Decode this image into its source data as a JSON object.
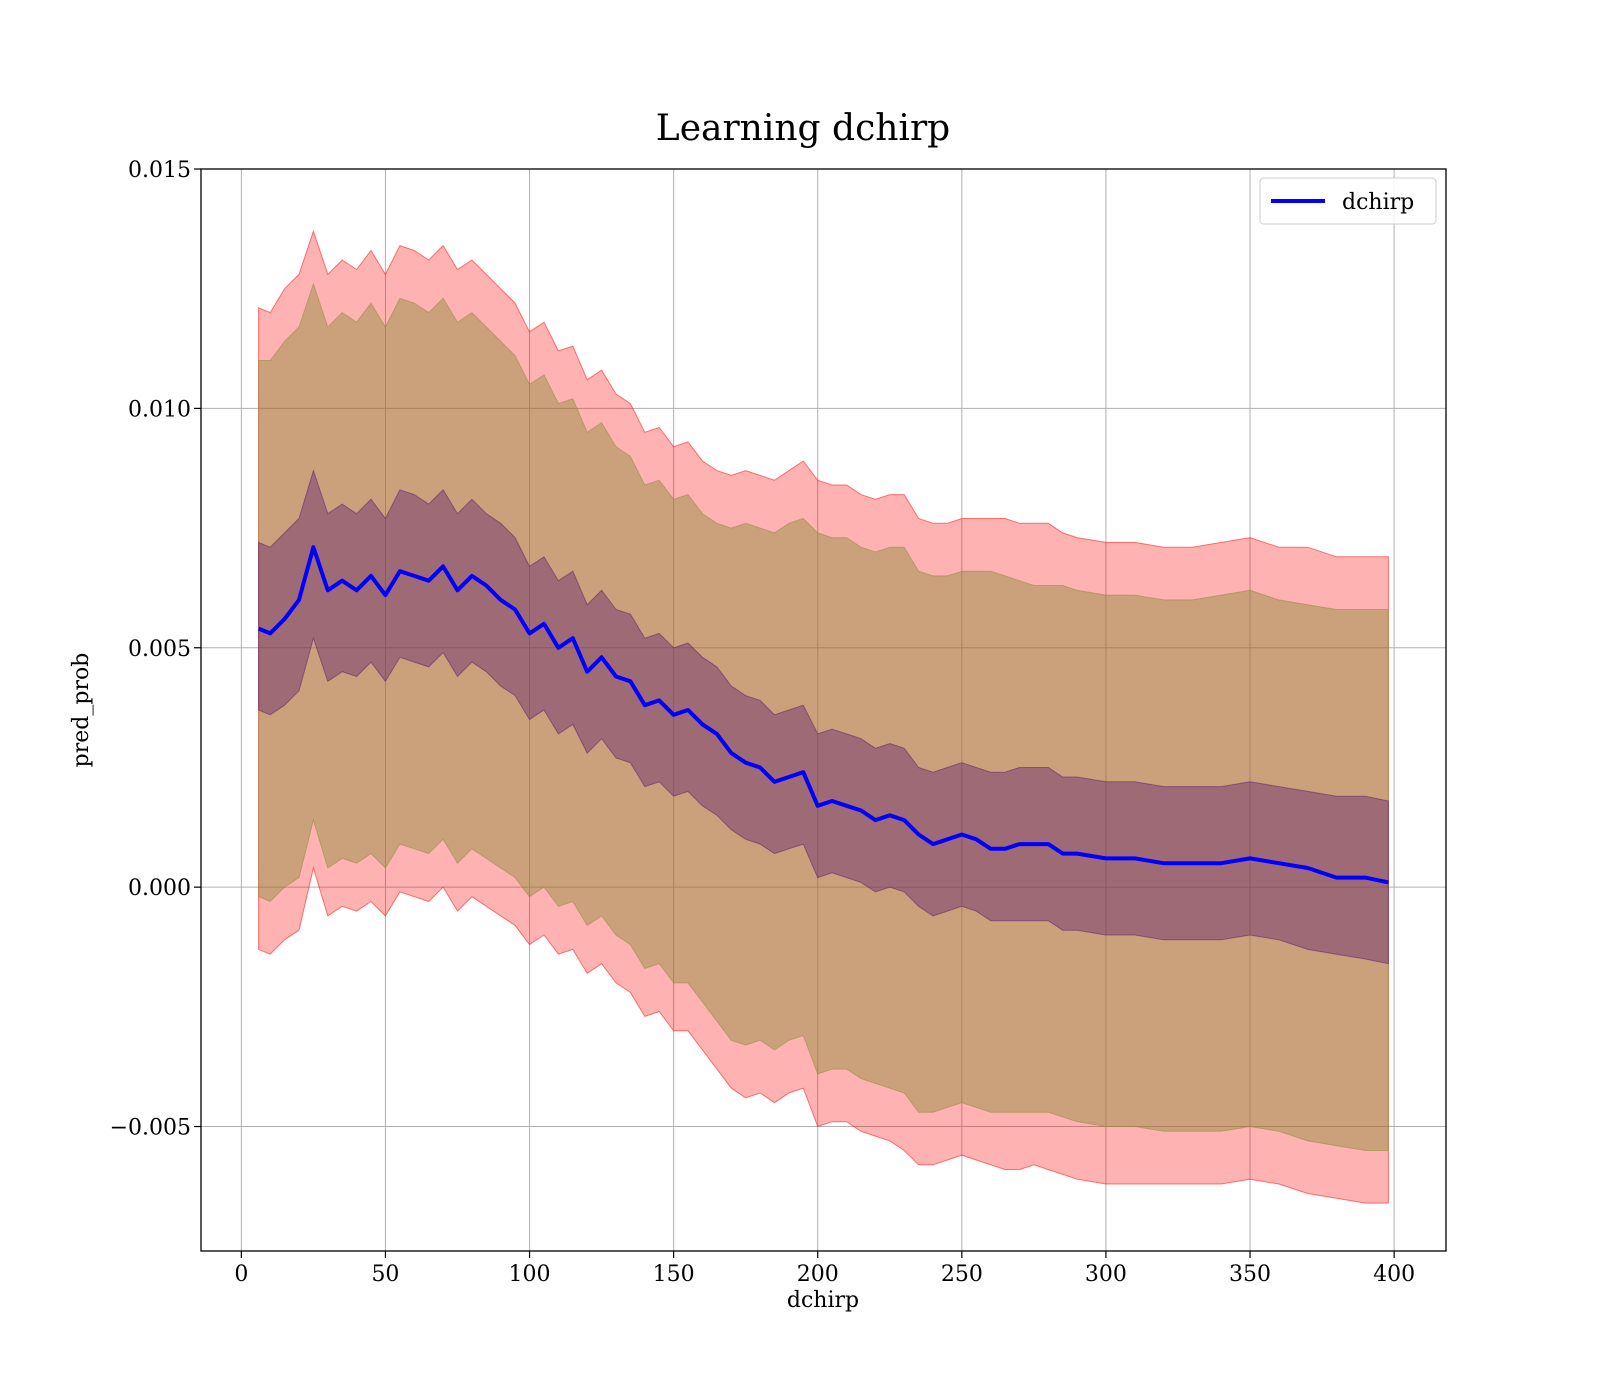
{
  "chart_data": {
    "type": "line",
    "title": "Learning dchirp",
    "xlabel": "dchirp",
    "ylabel": "pred_prob",
    "xlim": [
      -14,
      418
    ],
    "ylim": [
      -0.0076,
      0.015
    ],
    "grid": true,
    "legend_placement": "top-right",
    "xticks": [
      0,
      50,
      100,
      150,
      200,
      250,
      300,
      350,
      400
    ],
    "xtick_labels": [
      "0",
      "50",
      "100",
      "150",
      "200",
      "250",
      "300",
      "350",
      "400"
    ],
    "yticks": [
      -0.005,
      0.0,
      0.005,
      0.01,
      0.015
    ],
    "ytick_labels": [
      "−0.005",
      "0.000",
      "0.005",
      "0.010",
      "0.015"
    ],
    "series": [
      {
        "name": "dchirp",
        "color": "#0000ff",
        "x": [
          6,
          10,
          15,
          20,
          25,
          30,
          35,
          40,
          45,
          50,
          55,
          60,
          65,
          70,
          75,
          80,
          85,
          90,
          95,
          100,
          105,
          110,
          115,
          120,
          125,
          130,
          135,
          140,
          145,
          150,
          155,
          160,
          165,
          170,
          175,
          180,
          185,
          190,
          195,
          200,
          205,
          210,
          215,
          220,
          225,
          230,
          235,
          240,
          245,
          250,
          255,
          260,
          265,
          270,
          275,
          280,
          285,
          290,
          300,
          310,
          320,
          330,
          340,
          350,
          360,
          370,
          380,
          390,
          398
        ],
        "values": [
          0.0054,
          0.0053,
          0.0056,
          0.006,
          0.0071,
          0.0062,
          0.0064,
          0.0062,
          0.0065,
          0.0061,
          0.0066,
          0.0065,
          0.0064,
          0.0067,
          0.0062,
          0.0065,
          0.0063,
          0.006,
          0.0058,
          0.0053,
          0.0055,
          0.005,
          0.0052,
          0.0045,
          0.0048,
          0.0044,
          0.0043,
          0.0038,
          0.0039,
          0.0036,
          0.0037,
          0.0034,
          0.0032,
          0.0028,
          0.0026,
          0.0025,
          0.0022,
          0.0023,
          0.0024,
          0.0017,
          0.0018,
          0.0017,
          0.0016,
          0.0014,
          0.0015,
          0.0014,
          0.0011,
          0.0009,
          0.001,
          0.0011,
          0.001,
          0.0008,
          0.0008,
          0.0009,
          0.0009,
          0.0009,
          0.0007,
          0.0007,
          0.0006,
          0.0006,
          0.0005,
          0.0005,
          0.0005,
          0.0006,
          0.0005,
          0.0004,
          0.0002,
          0.0002,
          0.0001
        ]
      }
    ],
    "bands": [
      {
        "role": "outer",
        "color": "#ff0000",
        "opacity": 0.3,
        "upper": [
          0.0121,
          0.012,
          0.0125,
          0.0128,
          0.0137,
          0.0128,
          0.0131,
          0.0129,
          0.0133,
          0.0128,
          0.0134,
          0.0133,
          0.0131,
          0.0134,
          0.0129,
          0.0131,
          0.0128,
          0.0125,
          0.0122,
          0.0116,
          0.0118,
          0.0112,
          0.0113,
          0.0106,
          0.0108,
          0.0103,
          0.0101,
          0.0095,
          0.0096,
          0.0092,
          0.0093,
          0.0089,
          0.0087,
          0.0086,
          0.0087,
          0.0086,
          0.0085,
          0.0087,
          0.0089,
          0.0085,
          0.0084,
          0.0084,
          0.0082,
          0.0081,
          0.0082,
          0.0082,
          0.0077,
          0.0076,
          0.0076,
          0.0077,
          0.0077,
          0.0077,
          0.0077,
          0.0076,
          0.0076,
          0.0076,
          0.0074,
          0.0073,
          0.0072,
          0.0072,
          0.0071,
          0.0071,
          0.0072,
          0.0073,
          0.0071,
          0.0071,
          0.0069,
          0.0069,
          0.0069
        ],
        "lower": [
          -0.0013,
          -0.0014,
          -0.0011,
          -0.0009,
          0.0004,
          -0.0006,
          -0.0004,
          -0.0005,
          -0.0003,
          -0.0006,
          -0.0001,
          -0.0002,
          -0.0003,
          0.0,
          -0.0005,
          -0.0002,
          -0.0004,
          -0.0006,
          -0.0008,
          -0.0012,
          -0.001,
          -0.0014,
          -0.0013,
          -0.0018,
          -0.0016,
          -0.002,
          -0.0022,
          -0.0027,
          -0.0026,
          -0.003,
          -0.003,
          -0.0034,
          -0.0038,
          -0.0042,
          -0.0044,
          -0.0043,
          -0.0045,
          -0.0043,
          -0.0042,
          -0.005,
          -0.0049,
          -0.0049,
          -0.0051,
          -0.0052,
          -0.0053,
          -0.0055,
          -0.0058,
          -0.0058,
          -0.0057,
          -0.0056,
          -0.0057,
          -0.0058,
          -0.0059,
          -0.0059,
          -0.0058,
          -0.0059,
          -0.006,
          -0.0061,
          -0.0062,
          -0.0062,
          -0.0062,
          -0.0062,
          -0.0062,
          -0.0061,
          -0.0062,
          -0.0064,
          -0.0065,
          -0.0066,
          -0.0066
        ]
      },
      {
        "role": "middle",
        "color": "#8c8c3a",
        "opacity": 0.45,
        "upper": [
          0.011,
          0.011,
          0.0114,
          0.0117,
          0.0126,
          0.0117,
          0.012,
          0.0118,
          0.0122,
          0.0117,
          0.0123,
          0.0122,
          0.012,
          0.0123,
          0.0118,
          0.012,
          0.0117,
          0.0114,
          0.0111,
          0.0105,
          0.0107,
          0.0101,
          0.0102,
          0.0095,
          0.0097,
          0.0092,
          0.009,
          0.0084,
          0.0085,
          0.0081,
          0.0082,
          0.0078,
          0.0076,
          0.0075,
          0.0076,
          0.0075,
          0.0074,
          0.0076,
          0.0077,
          0.0074,
          0.0073,
          0.0073,
          0.0071,
          0.007,
          0.0071,
          0.0071,
          0.0066,
          0.0065,
          0.0065,
          0.0066,
          0.0066,
          0.0066,
          0.0065,
          0.0064,
          0.0063,
          0.0063,
          0.0063,
          0.0062,
          0.0061,
          0.0061,
          0.006,
          0.006,
          0.0061,
          0.0062,
          0.006,
          0.0059,
          0.0058,
          0.0058,
          0.0058
        ],
        "lower": [
          -0.0002,
          -0.0003,
          0.0,
          0.0002,
          0.0014,
          0.0004,
          0.0006,
          0.0005,
          0.0007,
          0.0004,
          0.0009,
          0.0008,
          0.0007,
          0.001,
          0.0005,
          0.0008,
          0.0006,
          0.0004,
          0.0002,
          -0.0002,
          0.0,
          -0.0004,
          -0.0003,
          -0.0008,
          -0.0006,
          -0.001,
          -0.0012,
          -0.0017,
          -0.0016,
          -0.002,
          -0.002,
          -0.0024,
          -0.0028,
          -0.0032,
          -0.0033,
          -0.0032,
          -0.0034,
          -0.0032,
          -0.0031,
          -0.0039,
          -0.0038,
          -0.0038,
          -0.004,
          -0.0041,
          -0.0042,
          -0.0043,
          -0.0047,
          -0.0047,
          -0.0046,
          -0.0045,
          -0.0046,
          -0.0047,
          -0.0047,
          -0.0047,
          -0.0047,
          -0.0047,
          -0.0048,
          -0.0049,
          -0.005,
          -0.005,
          -0.0051,
          -0.0051,
          -0.0051,
          -0.005,
          -0.0051,
          -0.0053,
          -0.0054,
          -0.0055,
          -0.0055
        ]
      },
      {
        "role": "inner",
        "color": "#5a1a6e",
        "opacity": 0.4,
        "upper": [
          0.0072,
          0.0071,
          0.0074,
          0.0077,
          0.0087,
          0.0078,
          0.008,
          0.0078,
          0.0081,
          0.0077,
          0.0083,
          0.0082,
          0.008,
          0.0083,
          0.0078,
          0.0081,
          0.0078,
          0.0076,
          0.0073,
          0.0067,
          0.0069,
          0.0064,
          0.0066,
          0.0059,
          0.0062,
          0.0058,
          0.0057,
          0.0052,
          0.0053,
          0.005,
          0.0051,
          0.0048,
          0.0046,
          0.0042,
          0.004,
          0.0039,
          0.0036,
          0.0037,
          0.0038,
          0.0032,
          0.0033,
          0.0032,
          0.0031,
          0.0029,
          0.003,
          0.0029,
          0.0025,
          0.0024,
          0.0025,
          0.0026,
          0.0025,
          0.0024,
          0.0024,
          0.0025,
          0.0025,
          0.0025,
          0.0023,
          0.0023,
          0.0022,
          0.0022,
          0.0021,
          0.0021,
          0.0021,
          0.0022,
          0.0021,
          0.002,
          0.0019,
          0.0019,
          0.0018
        ],
        "lower": [
          0.0037,
          0.0036,
          0.0038,
          0.0041,
          0.0052,
          0.0043,
          0.0045,
          0.0044,
          0.0047,
          0.0043,
          0.0048,
          0.0047,
          0.0046,
          0.0049,
          0.0044,
          0.0047,
          0.0045,
          0.0042,
          0.004,
          0.0035,
          0.0037,
          0.0032,
          0.0034,
          0.0028,
          0.0031,
          0.0027,
          0.0026,
          0.0021,
          0.0022,
          0.0019,
          0.002,
          0.0017,
          0.0015,
          0.0012,
          0.001,
          0.0009,
          0.0007,
          0.0008,
          0.0009,
          0.0002,
          0.0003,
          0.0002,
          0.0001,
          -0.0001,
          0.0,
          -0.0001,
          -0.0004,
          -0.0006,
          -0.0005,
          -0.0004,
          -0.0005,
          -0.0007,
          -0.0007,
          -0.0007,
          -0.0007,
          -0.0007,
          -0.0009,
          -0.0009,
          -0.001,
          -0.001,
          -0.0011,
          -0.0011,
          -0.0011,
          -0.001,
          -0.0011,
          -0.0013,
          -0.0014,
          -0.0015,
          -0.0016
        ]
      }
    ]
  }
}
